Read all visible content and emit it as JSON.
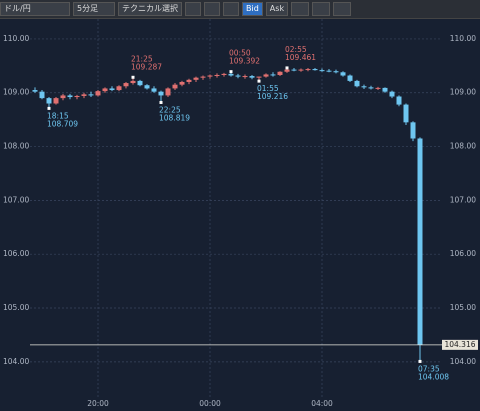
{
  "toolbar": {
    "symbol": "ドル/円",
    "timeframe": "5分足",
    "technical": "テクニカル選択",
    "bid": "Bid",
    "ask": "Ask"
  },
  "chart_data": {
    "type": "candlestick",
    "x": [
      "17:45",
      "18:00",
      "18:15",
      "18:30",
      "18:45",
      "19:00",
      "19:15",
      "19:30",
      "19:45",
      "20:00",
      "20:15",
      "20:30",
      "20:45",
      "21:00",
      "21:15",
      "21:30",
      "21:45",
      "22:00",
      "22:15",
      "22:30",
      "22:45",
      "23:00",
      "23:15",
      "23:30",
      "23:45",
      "00:00",
      "00:15",
      "00:30",
      "00:45",
      "01:00",
      "01:15",
      "01:30",
      "01:45",
      "02:00",
      "02:15",
      "02:30",
      "02:45",
      "03:00",
      "03:15",
      "03:30",
      "03:45",
      "04:00",
      "04:15",
      "04:30",
      "04:45",
      "05:00",
      "05:15",
      "05:30",
      "05:45",
      "06:00",
      "06:15",
      "06:30",
      "06:45",
      "07:00",
      "07:15",
      "07:30"
    ],
    "open": [
      109.05,
      109.02,
      108.9,
      108.8,
      108.9,
      108.95,
      108.92,
      108.94,
      108.97,
      108.95,
      109.03,
      109.08,
      109.05,
      109.12,
      109.18,
      109.22,
      109.14,
      109.08,
      109.02,
      108.95,
      109.08,
      109.15,
      109.2,
      109.24,
      109.28,
      109.3,
      109.32,
      109.33,
      109.35,
      109.32,
      109.3,
      109.31,
      109.28,
      109.3,
      109.34,
      109.33,
      109.39,
      109.43,
      109.42,
      109.43,
      109.44,
      109.42,
      109.41,
      109.4,
      109.38,
      109.32,
      109.22,
      109.12,
      109.1,
      109.08,
      109.09,
      109.02,
      108.93,
      108.78,
      108.45,
      108.15
    ],
    "high": [
      109.1,
      109.05,
      108.92,
      108.92,
      108.98,
      108.98,
      108.96,
      109.0,
      109.02,
      109.05,
      109.1,
      109.12,
      109.14,
      109.2,
      109.287,
      109.24,
      109.16,
      109.12,
      109.04,
      109.1,
      109.18,
      109.22,
      109.26,
      109.3,
      109.32,
      109.34,
      109.36,
      109.37,
      109.392,
      109.35,
      109.34,
      109.33,
      109.3,
      109.36,
      109.38,
      109.4,
      109.461,
      109.46,
      109.45,
      109.46,
      109.46,
      109.45,
      109.44,
      109.43,
      109.4,
      109.34,
      109.24,
      109.15,
      109.13,
      109.11,
      109.1,
      109.04,
      108.95,
      108.8,
      108.47,
      108.17
    ],
    "low": [
      109.0,
      108.88,
      108.709,
      108.78,
      108.86,
      108.88,
      108.88,
      108.9,
      108.92,
      108.93,
      109.0,
      109.03,
      109.03,
      109.08,
      109.15,
      109.12,
      109.06,
      109.0,
      108.819,
      108.92,
      109.05,
      109.12,
      109.16,
      109.2,
      109.24,
      109.26,
      109.28,
      109.3,
      109.3,
      109.27,
      109.26,
      109.25,
      109.216,
      109.28,
      109.3,
      109.31,
      109.37,
      109.4,
      109.39,
      109.4,
      109.41,
      109.39,
      109.38,
      109.36,
      109.3,
      109.2,
      109.1,
      109.07,
      109.06,
      109.05,
      109.0,
      108.9,
      108.75,
      108.4,
      108.1,
      104.008
    ],
    "close": [
      109.02,
      108.9,
      108.8,
      108.9,
      108.95,
      108.92,
      108.94,
      108.97,
      108.95,
      109.03,
      109.08,
      109.05,
      109.12,
      109.18,
      109.22,
      109.14,
      109.08,
      109.02,
      108.95,
      109.08,
      109.15,
      109.2,
      109.24,
      109.28,
      109.3,
      109.32,
      109.33,
      109.35,
      109.32,
      109.3,
      109.31,
      109.28,
      109.3,
      109.34,
      109.33,
      109.39,
      109.43,
      109.42,
      109.43,
      109.44,
      109.42,
      109.41,
      109.4,
      109.38,
      109.32,
      109.22,
      109.12,
      109.1,
      109.08,
      109.09,
      109.02,
      108.93,
      108.78,
      108.45,
      108.15,
      104.316
    ],
    "up_color": "#e07070",
    "down_color": "#6ec6f0",
    "ylim": [
      103.31,
      110.37
    ],
    "yticks": [
      {
        "value": 104,
        "label": "104.00"
      },
      {
        "value": 105,
        "label": "105.00"
      },
      {
        "value": 106,
        "label": "106.00"
      },
      {
        "value": 107,
        "label": "107.00"
      },
      {
        "value": 108,
        "label": "108.00"
      },
      {
        "value": 109,
        "label": "109.00"
      },
      {
        "value": 110,
        "label": "110.00"
      }
    ],
    "xticks": [
      "20:00",
      "00:00",
      "04:00"
    ],
    "grid": true,
    "annotations": [
      {
        "time": "18:15",
        "price": 108.709
      },
      {
        "time": "21:25",
        "price": 109.287
      },
      {
        "time": "22:25",
        "price": 108.819
      },
      {
        "time": "00:50",
        "price": 109.392
      },
      {
        "time": "01:55",
        "price": 109.216
      },
      {
        "time": "02:55",
        "price": 109.461
      },
      {
        "time": "07:35",
        "price": 104.008
      }
    ],
    "last_price": 104.316
  }
}
